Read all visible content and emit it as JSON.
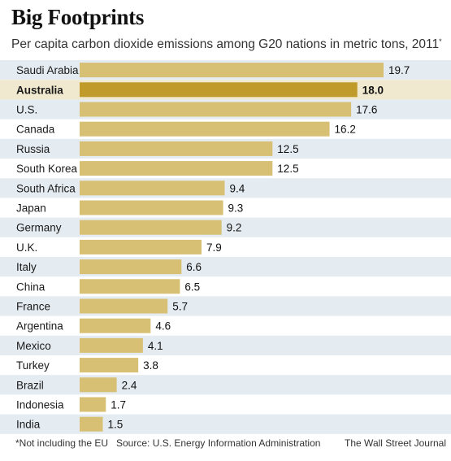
{
  "title": "Big Footprints",
  "subtitle": "Per capita carbon dioxide emissions among G20 nations in metric tons, 2011",
  "subtitle_marker": "*",
  "footnote": "*Not including the EU",
  "source": "Source: U.S. Energy Information Administration",
  "credit": "The Wall Street Journal",
  "colors": {
    "bar": "#d7bf73",
    "bar_highlight": "#c09a2a",
    "row_alt": "#e4ebf1",
    "row_highlight": "#f1e9cf"
  },
  "chart_data": {
    "type": "bar",
    "orientation": "horizontal",
    "highlight": "Australia",
    "categories": [
      "Saudi Arabia",
      "Australia",
      "U.S.",
      "Canada",
      "Russia",
      "South Korea",
      "South Africa",
      "Japan",
      "Germany",
      "U.K.",
      "Italy",
      "China",
      "France",
      "Argentina",
      "Mexico",
      "Turkey",
      "Brazil",
      "Indonesia",
      "India"
    ],
    "values": [
      19.7,
      18.0,
      17.6,
      16.2,
      12.5,
      12.5,
      9.4,
      9.3,
      9.2,
      7.9,
      6.6,
      6.5,
      5.7,
      4.6,
      4.1,
      3.8,
      2.4,
      1.7,
      1.5
    ],
    "value_labels": [
      "19.7",
      "18.0",
      "17.6",
      "16.2",
      "12.5",
      "12.5",
      "9.4",
      "9.3",
      "9.2",
      "7.9",
      "6.6",
      "6.5",
      "5.7",
      "4.6",
      "4.1",
      "3.8",
      "2.4",
      "1.7",
      "1.5"
    ],
    "xlim": [
      0,
      19.7
    ],
    "grid": false
  }
}
